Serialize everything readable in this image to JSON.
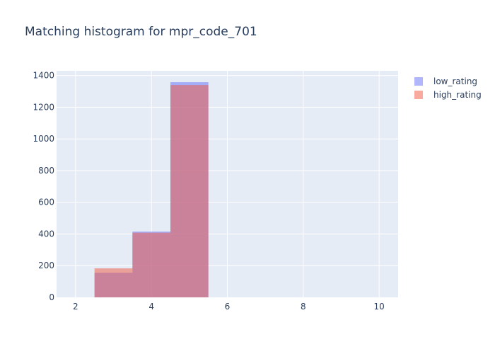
{
  "chart_data": {
    "type": "bar",
    "title": "Matching histogram for mpr_code_701",
    "xlabel": "",
    "ylabel": "",
    "xlim": [
      1.5,
      10.5
    ],
    "ylim": [
      0,
      1430
    ],
    "x_ticks": [
      2,
      4,
      6,
      8,
      10
    ],
    "y_ticks": [
      0,
      200,
      400,
      600,
      800,
      1000,
      1200,
      1400
    ],
    "bin_width": 1,
    "barmode": "overlay",
    "grid": true,
    "legend_position": "top-right",
    "series": [
      {
        "name": "low_rating",
        "color": "#636efa",
        "opacity": 0.5,
        "bins": [
          {
            "x": 3,
            "y": 155
          },
          {
            "x": 4,
            "y": 415
          },
          {
            "x": 5,
            "y": 1358
          }
        ]
      },
      {
        "name": "high_rating",
        "color": "#ef553b",
        "opacity": 0.5,
        "bins": [
          {
            "x": 3,
            "y": 183
          },
          {
            "x": 4,
            "y": 408
          },
          {
            "x": 5,
            "y": 1340
          }
        ]
      }
    ],
    "colors": {
      "plot_bg": "#e5ecf6",
      "grid": "#ffffff",
      "text": "#2a3f5f"
    }
  }
}
